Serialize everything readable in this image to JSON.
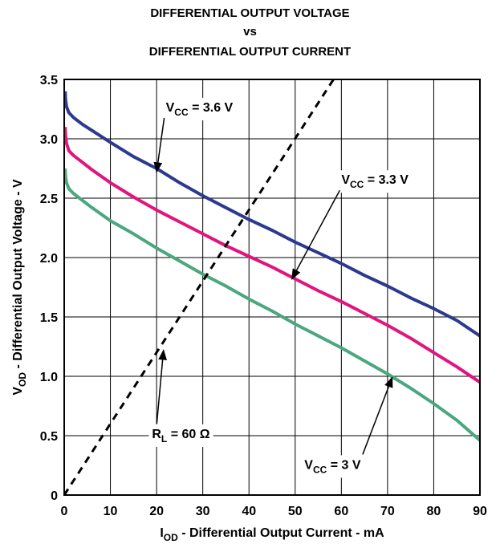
{
  "chart_data": {
    "type": "line",
    "title_lines": [
      "DIFFERENTIAL OUTPUT VOLTAGE",
      "vs",
      "DIFFERENTIAL OUTPUT CURRENT"
    ],
    "xlabel": {
      "main": "I",
      "sub": "OD",
      "rest": " - Differential Output Current - mA"
    },
    "ylabel": {
      "main": "V",
      "sub": "OD",
      "rest": " - Differential Output Voltage - V"
    },
    "xlim": [
      0,
      90
    ],
    "ylim": [
      0,
      3.5
    ],
    "x_ticks": [
      0,
      10,
      20,
      30,
      40,
      50,
      60,
      70,
      80,
      90
    ],
    "x_tick_labels": [
      "0",
      "10",
      "20",
      "30",
      "40",
      "50",
      "60",
      "70",
      "80",
      "90"
    ],
    "y_ticks": [
      0,
      0.5,
      1.0,
      1.5,
      2.0,
      2.5,
      3.0,
      3.5
    ],
    "y_tick_labels": [
      "0",
      "0.5",
      "1.0",
      "1.5",
      "2.0",
      "2.5",
      "3.0",
      "3.5"
    ],
    "grid": true,
    "series": [
      {
        "name": "VCC = 3.6 V",
        "color": "#2b3a8f",
        "x": [
          0.2,
          0.3,
          0.5,
          1,
          2,
          4,
          6,
          10,
          15,
          20,
          25,
          30,
          35,
          40,
          45,
          50,
          55,
          60,
          65,
          70,
          75,
          80,
          85,
          90
        ],
        "y": [
          3.4,
          3.33,
          3.27,
          3.22,
          3.18,
          3.12,
          3.07,
          2.97,
          2.85,
          2.75,
          2.63,
          2.52,
          2.42,
          2.32,
          2.23,
          2.13,
          2.04,
          1.95,
          1.85,
          1.76,
          1.66,
          1.57,
          1.47,
          1.34
        ]
      },
      {
        "name": "VCC = 3.3 V",
        "color": "#e0157f",
        "x": [
          0.2,
          0.3,
          0.5,
          1,
          2,
          4,
          6,
          10,
          15,
          20,
          25,
          30,
          35,
          40,
          45,
          50,
          55,
          60,
          65,
          70,
          75,
          80,
          85,
          90
        ],
        "y": [
          3.1,
          3.03,
          2.96,
          2.9,
          2.86,
          2.8,
          2.74,
          2.63,
          2.51,
          2.4,
          2.3,
          2.2,
          2.1,
          2.01,
          1.92,
          1.82,
          1.72,
          1.63,
          1.53,
          1.43,
          1.32,
          1.2,
          1.08,
          0.95
        ]
      },
      {
        "name": "VCC = 3 V",
        "color": "#4aa77f",
        "x": [
          0.2,
          0.3,
          0.5,
          1,
          2,
          4,
          6,
          10,
          15,
          20,
          25,
          30,
          35,
          40,
          45,
          50,
          55,
          60,
          65,
          70,
          75,
          80,
          85,
          90
        ],
        "y": [
          2.75,
          2.68,
          2.63,
          2.58,
          2.54,
          2.48,
          2.42,
          2.31,
          2.2,
          2.08,
          1.97,
          1.86,
          1.76,
          1.65,
          1.55,
          1.44,
          1.34,
          1.24,
          1.13,
          1.02,
          0.9,
          0.77,
          0.63,
          0.46
        ]
      },
      {
        "name": "RL = 60 Ω",
        "color": "#000000",
        "dashed": true,
        "x": [
          0,
          58.3
        ],
        "y": [
          0,
          3.5
        ]
      }
    ],
    "annotations": [
      {
        "main": "V",
        "sub": "CC",
        "rest": " = 3.6 V",
        "text_at": [
          22,
          3.23
        ],
        "arrow_to": [
          20.0,
          2.72
        ]
      },
      {
        "main": "V",
        "sub": "CC",
        "rest": " = 3.3 V",
        "text_at": [
          60,
          2.62
        ],
        "arrow_to": [
          49.3,
          1.82
        ]
      },
      {
        "main": "R",
        "sub": "L",
        "rest": " = 60 Ω",
        "text_at": [
          19,
          0.48
        ],
        "arrow_to": [
          21.5,
          1.22
        ]
      },
      {
        "main": "V",
        "sub": "CC",
        "rest": " = 3 V",
        "text_at": [
          52,
          0.22
        ],
        "arrow_to": [
          71.0,
          0.99
        ]
      }
    ]
  }
}
